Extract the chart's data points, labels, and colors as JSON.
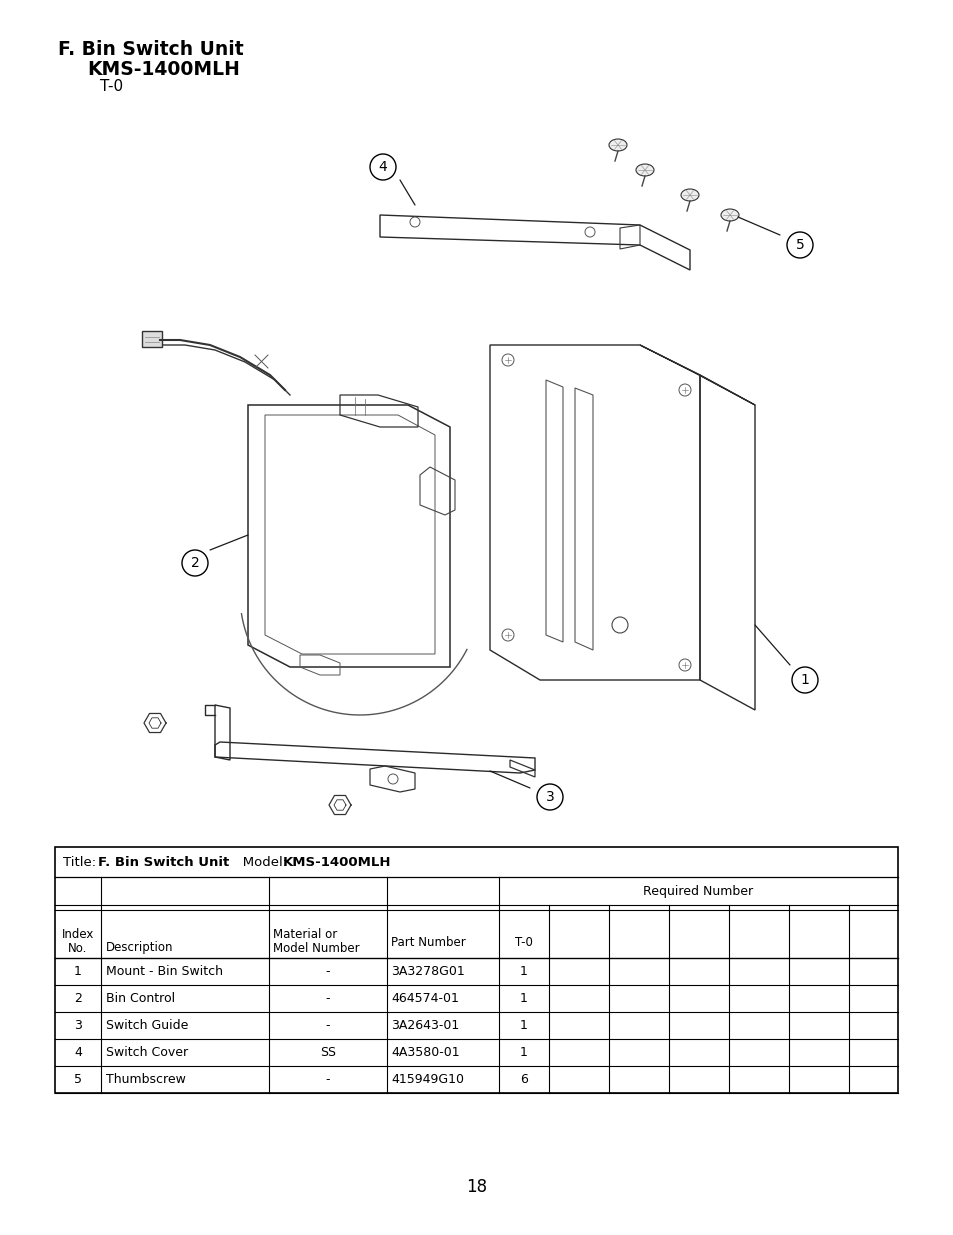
{
  "title_line1": "F. Bin Switch Unit",
  "title_line2": "KMS-1400MLH",
  "title_line3": "T-0",
  "page_number": "18",
  "rows": [
    [
      "1",
      "Mount - Bin Switch",
      "-",
      "3A3278G01",
      "1"
    ],
    [
      "2",
      "Bin Control",
      "-",
      "464574-01",
      "1"
    ],
    [
      "3",
      "Switch Guide",
      "-",
      "3A2643-01",
      "1"
    ],
    [
      "4",
      "Switch Cover",
      "SS",
      "4A3580-01",
      "1"
    ],
    [
      "5",
      "Thumbscrew",
      "-",
      "415949G10",
      "6"
    ]
  ],
  "bg_color": "#ffffff",
  "text_color": "#000000"
}
